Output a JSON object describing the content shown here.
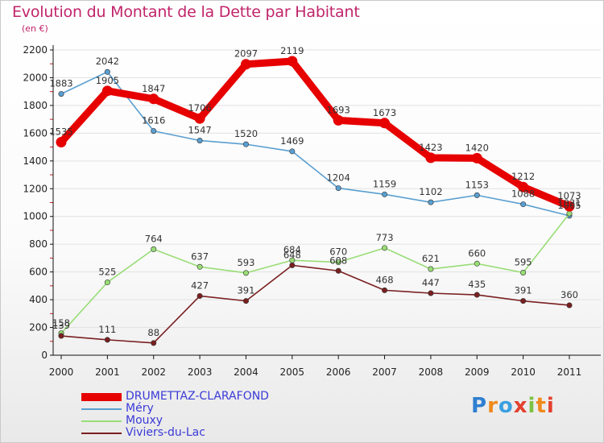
{
  "header": {
    "title": "Evolution du Montant de la Dette par Habitant",
    "subtitle": "(en €)"
  },
  "colors": {
    "title": "#c1246a",
    "legend_text": "#3a3ad8",
    "axis": "#111111",
    "grid": "#e2e2e2"
  },
  "chart_data": {
    "type": "line",
    "title": "Evolution du Montant de la Dette par Habitant",
    "subtitle": "(en €)",
    "xlabel": "",
    "ylabel": "",
    "x": [
      "2000",
      "2001",
      "2002",
      "2003",
      "2004",
      "2005",
      "2006",
      "2007",
      "2008",
      "2009",
      "2010",
      "2011"
    ],
    "ylim": [
      0,
      2200
    ],
    "yticks": [
      0,
      200,
      400,
      600,
      800,
      1000,
      1200,
      1400,
      1600,
      1800,
      2000,
      2200
    ],
    "grid": "horizontal",
    "legend_position": "bottom-left",
    "series": [
      {
        "name": "DRUMETTAZ-CLARAFOND",
        "color": "#e60000",
        "thick": true,
        "values": [
          1535,
          1905,
          1847,
          1706,
          2097,
          2119,
          1693,
          1673,
          1423,
          1420,
          1212,
          1073
        ],
        "labels": [
          "1535",
          "1905",
          "1847",
          "1706",
          "2097",
          "2119",
          "1693",
          "1673",
          "1423",
          "1420",
          "1212",
          "1073"
        ]
      },
      {
        "name": "Méry",
        "color": "#5a9fd0",
        "values": [
          1883,
          2042,
          1616,
          1547,
          1520,
          1469,
          1204,
          1159,
          1102,
          1153,
          1088,
          1005
        ],
        "labels": [
          "1883",
          "2042",
          "1616",
          "1547",
          "1520",
          "1469",
          "1204",
          "1159",
          "1102",
          "1153",
          "1088",
          "1005"
        ]
      },
      {
        "name": "Mouxy",
        "color": "#99dd77",
        "values": [
          158,
          525,
          764,
          637,
          593,
          684,
          670,
          773,
          621,
          660,
          595,
          1021
        ],
        "labels": [
          "158",
          "525",
          "764",
          "637",
          "593",
          "684",
          "670",
          "773",
          "621",
          "660",
          "595",
          "1021"
        ]
      },
      {
        "name": "Viviers-du-Lac",
        "color": "#7a1f1f",
        "values": [
          139,
          111,
          88,
          427,
          391,
          648,
          608,
          468,
          447,
          435,
          391,
          360
        ],
        "labels": [
          "139",
          "111",
          "88",
          "427",
          "391",
          "648",
          "608",
          "468",
          "447",
          "435",
          "391",
          "360"
        ]
      }
    ]
  },
  "legend": [
    {
      "label": "DRUMETTAZ-CLARAFOND",
      "color": "#e60000",
      "thick": true
    },
    {
      "label": "Méry",
      "color": "#5a9fd0",
      "thick": false
    },
    {
      "label": "Mouxy",
      "color": "#99dd77",
      "thick": false
    },
    {
      "label": "Viviers-du-Lac",
      "color": "#7a1f1f",
      "thick": false
    }
  ],
  "logo": {
    "text": "Proxiti",
    "icon": "proxiti-logo"
  }
}
